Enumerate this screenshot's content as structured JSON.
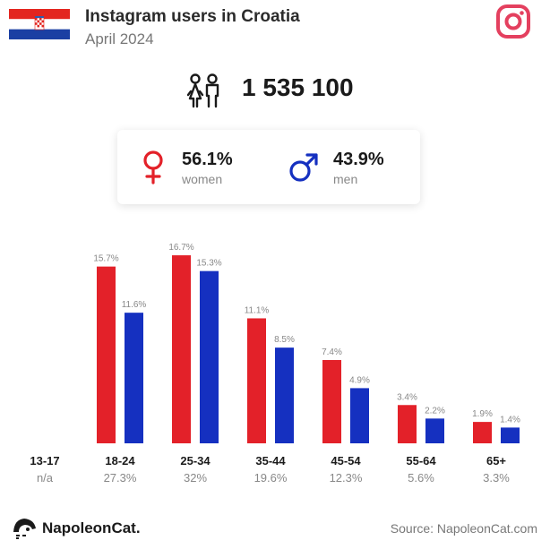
{
  "header": {
    "title": "Instagram users in Croatia",
    "subtitle": "April 2024"
  },
  "total_users": "1 535 100",
  "gender": {
    "women": {
      "pct": "56.1%",
      "label": "women",
      "color": "#e32129"
    },
    "men": {
      "pct": "43.9%",
      "label": "men",
      "color": "#1530c0"
    }
  },
  "colors": {
    "women": "#e32129",
    "men": "#1530c0",
    "instagram": "#e4405f"
  },
  "icons": [
    "croatia-flag-icon",
    "instagram-icon",
    "users-icon",
    "female-icon",
    "male-icon",
    "napoleoncat-logo-icon"
  ],
  "chart_data": {
    "type": "bar",
    "categories": [
      "13-17",
      "18-24",
      "25-34",
      "35-44",
      "45-54",
      "55-64",
      "65+"
    ],
    "category_totals": [
      "n/a",
      "27.3%",
      "32%",
      "19.6%",
      "12.3%",
      "5.6%",
      "3.3%"
    ],
    "series": [
      {
        "name": "women",
        "color": "#e32129",
        "values": [
          null,
          15.7,
          16.7,
          11.1,
          7.4,
          3.4,
          1.9
        ],
        "labels": [
          "",
          "15.7%",
          "16.7%",
          "11.1%",
          "7.4%",
          "3.4%",
          "1.9%"
        ]
      },
      {
        "name": "men",
        "color": "#1530c0",
        "values": [
          null,
          11.6,
          15.3,
          8.5,
          4.9,
          2.2,
          1.4
        ],
        "labels": [
          "",
          "11.6%",
          "15.3%",
          "8.5%",
          "4.9%",
          "2.2%",
          "1.4%"
        ]
      }
    ],
    "ylim": [
      0,
      17.5
    ],
    "grid": false,
    "legend": "none"
  },
  "footer": {
    "brand": "NapoleonCat.",
    "source": "Source: NapoleonCat.com"
  }
}
